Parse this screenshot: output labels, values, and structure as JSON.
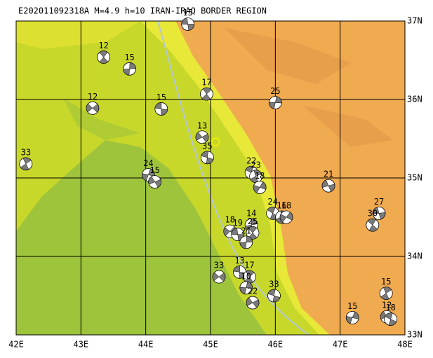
{
  "title": "E202011092318A M=4.9 h=10 IRAN-IRAQ BORDER REGION",
  "map": {
    "xlim": [
      42,
      48
    ],
    "ylim": [
      33,
      37
    ],
    "xticks": [
      {
        "value": 42,
        "label": "42E"
      },
      {
        "value": 43,
        "label": "43E"
      },
      {
        "value": 44,
        "label": "44E"
      },
      {
        "value": 45,
        "label": "45E"
      },
      {
        "value": 46,
        "label": "46E"
      },
      {
        "value": 47,
        "label": "47E"
      },
      {
        "value": 48,
        "label": "48E"
      }
    ],
    "yticks": [
      {
        "value": 33,
        "label": "33N"
      },
      {
        "value": 34,
        "label": "34N"
      },
      {
        "value": 35,
        "label": "35N"
      },
      {
        "value": 36,
        "label": "36N"
      },
      {
        "value": 37,
        "label": "37N"
      }
    ],
    "epicenter": {
      "lon": 45.08,
      "lat": 35.46
    },
    "events": [
      {
        "depth": 15,
        "lon": 44.65,
        "lat": 36.96
      },
      {
        "depth": 12,
        "lon": 43.35,
        "lat": 36.54
      },
      {
        "depth": 15,
        "lon": 43.75,
        "lat": 36.39
      },
      {
        "depth": 12,
        "lon": 43.18,
        "lat": 35.89
      },
      {
        "depth": 15,
        "lon": 44.24,
        "lat": 35.88
      },
      {
        "depth": 17,
        "lon": 44.94,
        "lat": 36.07
      },
      {
        "depth": 25,
        "lon": 46.0,
        "lat": 35.96
      },
      {
        "depth": 13,
        "lon": 44.87,
        "lat": 35.52
      },
      {
        "depth": 35,
        "lon": 44.95,
        "lat": 35.26
      },
      {
        "depth": 33,
        "lon": 42.15,
        "lat": 35.18
      },
      {
        "depth": 24,
        "lon": 44.04,
        "lat": 35.04
      },
      {
        "depth": 15,
        "lon": 44.14,
        "lat": 34.95
      },
      {
        "depth": 22,
        "lon": 45.63,
        "lat": 35.07
      },
      {
        "depth": 23,
        "lon": 45.7,
        "lat": 35.02
      },
      {
        "depth": 18,
        "lon": 45.76,
        "lat": 34.88
      },
      {
        "depth": 21,
        "lon": 46.82,
        "lat": 34.9
      },
      {
        "depth": 24,
        "lon": 45.96,
        "lat": 34.55
      },
      {
        "depth": 16,
        "lon": 46.1,
        "lat": 34.5
      },
      {
        "depth": 18,
        "lon": 46.17,
        "lat": 34.5
      },
      {
        "depth": 27,
        "lon": 47.6,
        "lat": 34.55
      },
      {
        "depth": 30,
        "lon": 47.5,
        "lat": 34.4
      },
      {
        "depth": 14,
        "lon": 45.63,
        "lat": 34.4
      },
      {
        "depth": 18,
        "lon": 45.3,
        "lat": 34.32
      },
      {
        "depth": 19,
        "lon": 45.42,
        "lat": 34.28
      },
      {
        "depth": 25,
        "lon": 45.65,
        "lat": 34.3
      },
      {
        "depth": 21,
        "lon": 45.55,
        "lat": 34.18
      },
      {
        "depth": 33,
        "lon": 45.13,
        "lat": 33.74
      },
      {
        "depth": 13,
        "lon": 45.45,
        "lat": 33.8
      },
      {
        "depth": 17,
        "lon": 45.6,
        "lat": 33.74
      },
      {
        "depth": 10,
        "lon": 45.55,
        "lat": 33.6
      },
      {
        "depth": 22,
        "lon": 45.65,
        "lat": 33.41
      },
      {
        "depth": 33,
        "lon": 45.98,
        "lat": 33.5
      },
      {
        "depth": 15,
        "lon": 47.71,
        "lat": 33.53
      },
      {
        "depth": 15,
        "lon": 47.19,
        "lat": 33.22
      },
      {
        "depth": 12,
        "lon": 47.72,
        "lat": 33.23
      },
      {
        "depth": 18,
        "lon": 47.78,
        "lat": 33.2
      }
    ]
  }
}
